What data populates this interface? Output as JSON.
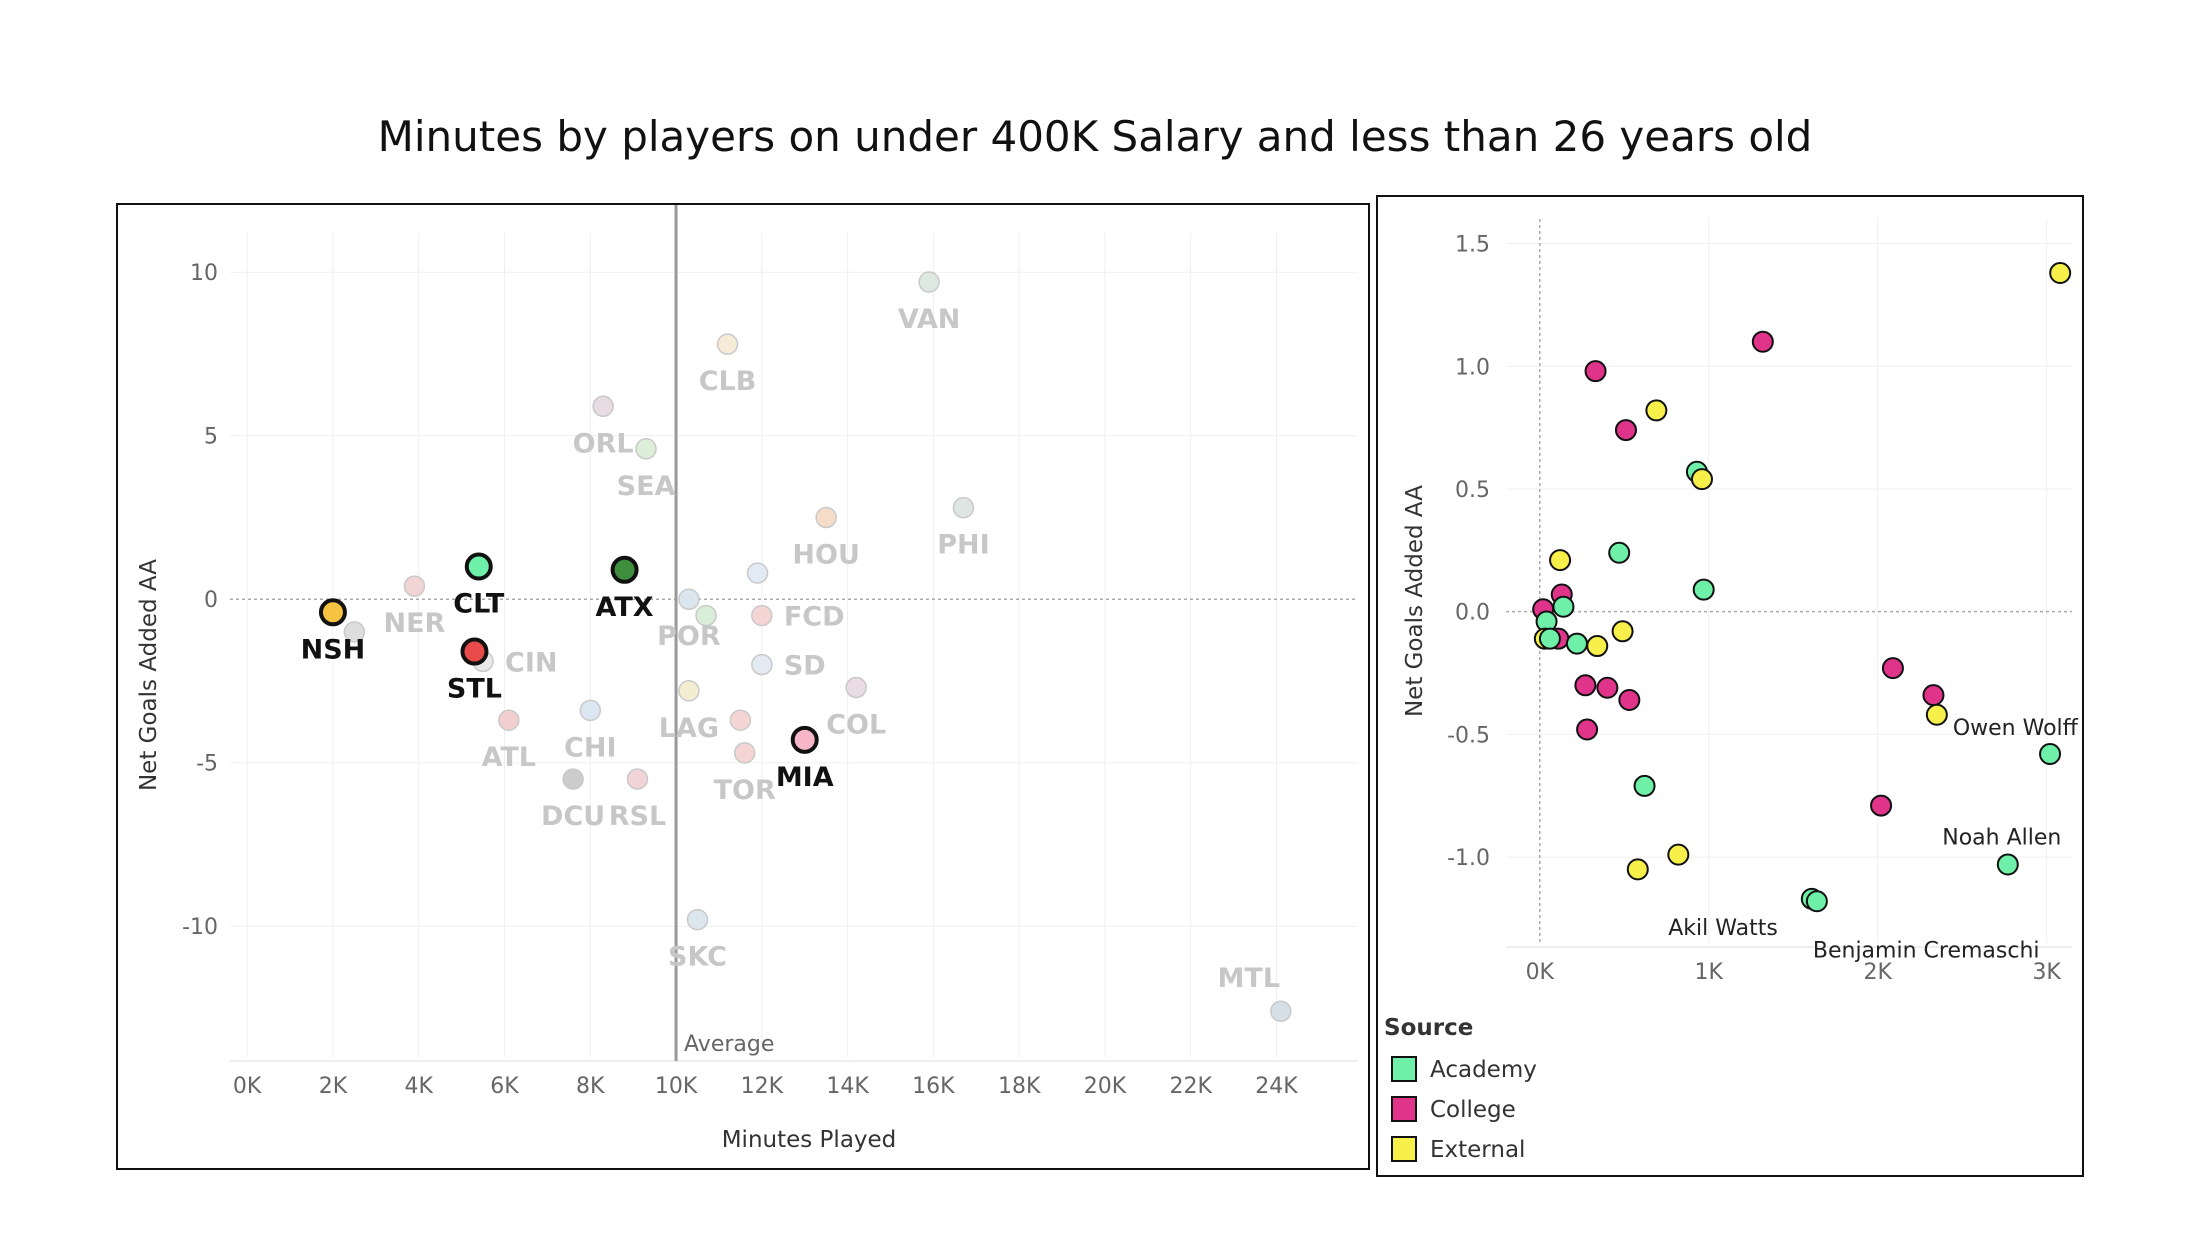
{
  "title": "Minutes by players on under 400K Salary and less than 26 years old",
  "colors": {
    "academy": "#6EF0A8",
    "college": "#E0338A",
    "external": "#F7F04A",
    "highlight_text": "#111111",
    "muted_text": "#C7C7C7",
    "average_line": "#999999"
  },
  "chart_data": [
    {
      "type": "scatter",
      "title": "",
      "xlabel": "Minutes Played",
      "ylabel": "Net Goals Added AA",
      "xlim": [
        -400,
        25900
      ],
      "ylim": [
        -14.0,
        11.2
      ],
      "xticks": [
        0,
        2000,
        4000,
        6000,
        8000,
        10000,
        12000,
        14000,
        16000,
        18000,
        20000,
        22000,
        24000
      ],
      "xtick_labels": [
        "0K",
        "2K",
        "4K",
        "6K",
        "8K",
        "10K",
        "12K",
        "14K",
        "16K",
        "18K",
        "20K",
        "22K",
        "24K"
      ],
      "yticks": [
        10,
        5,
        0,
        -5,
        -10
      ],
      "ytick_labels": [
        "10",
        "5",
        "0",
        "-5",
        "-10"
      ],
      "grid": true,
      "average_line": {
        "x": 10000,
        "label": "Average"
      },
      "points": [
        {
          "team": "NSH",
          "x": 2000,
          "y": -0.4,
          "highlight": true,
          "fill": "#F5C242",
          "label_pos": "below"
        },
        {
          "team": "CLT",
          "x": 5400,
          "y": 1.0,
          "highlight": true,
          "fill": "#6EF0A8",
          "label_pos": "below"
        },
        {
          "team": "STL",
          "x": 5300,
          "y": -1.6,
          "highlight": true,
          "fill": "#E84A4A",
          "label_pos": "below"
        },
        {
          "team": "ATX",
          "x": 8800,
          "y": 0.9,
          "highlight": true,
          "fill": "#3E8E3E",
          "label_pos": "below"
        },
        {
          "team": "MIA",
          "x": 13000,
          "y": -4.3,
          "highlight": true,
          "fill": "#F7B6C8",
          "label_pos": "below"
        },
        {
          "team": "NER",
          "x": 3900,
          "y": 0.4,
          "highlight": false,
          "fill": "#F2D4D4",
          "label_pos": "below"
        },
        {
          "team": "",
          "x": 2500,
          "y": -1.0,
          "highlight": false,
          "fill": "#DDDDDD",
          "label_pos": "none"
        },
        {
          "team": "CIN",
          "x": 5500,
          "y": -1.9,
          "highlight": false,
          "fill": "#E8E8E8",
          "label_pos": "right"
        },
        {
          "team": "ATL",
          "x": 6100,
          "y": -3.7,
          "highlight": false,
          "fill": "#F2CFCF",
          "label_pos": "below"
        },
        {
          "team": "CHI",
          "x": 8000,
          "y": -3.4,
          "highlight": false,
          "fill": "#DCE6F2",
          "label_pos": "below"
        },
        {
          "team": "DCU",
          "x": 7600,
          "y": -5.5,
          "highlight": false,
          "fill": "#CCCCCC",
          "label_pos": "below"
        },
        {
          "team": "RSL",
          "x": 9100,
          "y": -5.5,
          "highlight": false,
          "fill": "#F2D4D8",
          "label_pos": "below"
        },
        {
          "team": "ORL",
          "x": 8300,
          "y": 5.9,
          "highlight": false,
          "fill": "#E8DCE2",
          "label_pos": "below"
        },
        {
          "team": "SEA",
          "x": 9300,
          "y": 4.6,
          "highlight": false,
          "fill": "#DDEFD8",
          "label_pos": "below"
        },
        {
          "team": "CLB",
          "x": 11200,
          "y": 7.8,
          "highlight": false,
          "fill": "#F5EBD6",
          "label_pos": "below"
        },
        {
          "team": "VAN",
          "x": 15900,
          "y": 9.7,
          "highlight": false,
          "fill": "#DDE8E2",
          "label_pos": "below"
        },
        {
          "team": "HOU",
          "x": 13500,
          "y": 2.5,
          "highlight": false,
          "fill": "#F5DCC8",
          "label_pos": "below"
        },
        {
          "team": "PHI",
          "x": 16700,
          "y": 2.8,
          "highlight": false,
          "fill": "#DDE6E2",
          "label_pos": "below"
        },
        {
          "team": "",
          "x": 11900,
          "y": 0.8,
          "highlight": false,
          "fill": "#E2EAF4",
          "label_pos": "none"
        },
        {
          "team": "POR",
          "x": 10300,
          "y": 0.0,
          "highlight": false,
          "fill": "#DCE6EE",
          "label_pos": "below"
        },
        {
          "team": "",
          "x": 10700,
          "y": -0.5,
          "highlight": false,
          "fill": "#D8EED8",
          "label_pos": "none"
        },
        {
          "team": "FCD",
          "x": 12000,
          "y": -0.5,
          "highlight": false,
          "fill": "#F5D4D4",
          "label_pos": "right"
        },
        {
          "team": "SD",
          "x": 12000,
          "y": -2.0,
          "highlight": false,
          "fill": "#E4EAF2",
          "label_pos": "right"
        },
        {
          "team": "LAG",
          "x": 10300,
          "y": -2.8,
          "highlight": false,
          "fill": "#F5EDD2",
          "label_pos": "below"
        },
        {
          "team": "",
          "x": 11500,
          "y": -3.7,
          "highlight": false,
          "fill": "#F5D4D4",
          "label_pos": "none"
        },
        {
          "team": "TOR",
          "x": 11600,
          "y": -4.7,
          "highlight": false,
          "fill": "#F5D4D4",
          "label_pos": "below"
        },
        {
          "team": "COL",
          "x": 14200,
          "y": -2.7,
          "highlight": false,
          "fill": "#EADCE2",
          "label_pos": "below"
        },
        {
          "team": "SKC",
          "x": 10500,
          "y": -9.8,
          "highlight": false,
          "fill": "#DCE6EE",
          "label_pos": "below"
        },
        {
          "team": "MTL",
          "x": 24100,
          "y": -12.6,
          "highlight": false,
          "fill": "#D6DEE6",
          "label_pos": "above-left"
        }
      ]
    },
    {
      "type": "scatter",
      "title": "",
      "xlabel": "",
      "ylabel": "Net Goals Added AA",
      "xlim": [
        -200,
        3150
      ],
      "ylim": [
        -1.35,
        1.6
      ],
      "xticks": [
        0,
        1000,
        2000,
        3000
      ],
      "xtick_labels": [
        "0K",
        "1K",
        "2K",
        "3K"
      ],
      "yticks": [
        1.5,
        1.0,
        0.5,
        0.0,
        -0.5,
        -1.0
      ],
      "ytick_labels": [
        "1.5",
        "1.0",
        "0.5",
        "0.0",
        "-0.5",
        "-1.0"
      ],
      "grid": true,
      "legend": {
        "title": "Source",
        "position": "bottom-left",
        "items": [
          {
            "label": "Academy",
            "color": "#6EF0A8"
          },
          {
            "label": "College",
            "color": "#E0338A"
          },
          {
            "label": "External",
            "color": "#F7F04A"
          }
        ]
      },
      "points": [
        {
          "x": 3080,
          "y": 1.38,
          "source": "External",
          "name": ""
        },
        {
          "x": 1320,
          "y": 1.1,
          "source": "College",
          "name": ""
        },
        {
          "x": 330,
          "y": 0.98,
          "source": "College",
          "name": ""
        },
        {
          "x": 690,
          "y": 0.82,
          "source": "External",
          "name": ""
        },
        {
          "x": 510,
          "y": 0.74,
          "source": "College",
          "name": ""
        },
        {
          "x": 930,
          "y": 0.57,
          "source": "Academy",
          "name": ""
        },
        {
          "x": 960,
          "y": 0.54,
          "source": "External",
          "name": ""
        },
        {
          "x": 470,
          "y": 0.24,
          "source": "Academy",
          "name": ""
        },
        {
          "x": 120,
          "y": 0.21,
          "source": "External",
          "name": ""
        },
        {
          "x": 970,
          "y": 0.09,
          "source": "Academy",
          "name": ""
        },
        {
          "x": 130,
          "y": 0.07,
          "source": "College",
          "name": ""
        },
        {
          "x": 140,
          "y": 0.02,
          "source": "Academy",
          "name": ""
        },
        {
          "x": 20,
          "y": 0.01,
          "source": "College",
          "name": ""
        },
        {
          "x": 40,
          "y": -0.04,
          "source": "Academy",
          "name": ""
        },
        {
          "x": 490,
          "y": -0.08,
          "source": "External",
          "name": ""
        },
        {
          "x": 110,
          "y": -0.11,
          "source": "College",
          "name": ""
        },
        {
          "x": 30,
          "y": -0.11,
          "source": "External",
          "name": ""
        },
        {
          "x": 60,
          "y": -0.11,
          "source": "Academy",
          "name": ""
        },
        {
          "x": 220,
          "y": -0.13,
          "source": "Academy",
          "name": ""
        },
        {
          "x": 340,
          "y": -0.14,
          "source": "External",
          "name": ""
        },
        {
          "x": 2090,
          "y": -0.23,
          "source": "College",
          "name": ""
        },
        {
          "x": 270,
          "y": -0.3,
          "source": "College",
          "name": ""
        },
        {
          "x": 400,
          "y": -0.31,
          "source": "College",
          "name": ""
        },
        {
          "x": 2330,
          "y": -0.34,
          "source": "College",
          "name": ""
        },
        {
          "x": 530,
          "y": -0.36,
          "source": "College",
          "name": ""
        },
        {
          "x": 2350,
          "y": -0.42,
          "source": "External",
          "name": "Owen Wolff"
        },
        {
          "x": 280,
          "y": -0.48,
          "source": "College",
          "name": ""
        },
        {
          "x": 3020,
          "y": -0.58,
          "source": "Academy",
          "name": ""
        },
        {
          "x": 620,
          "y": -0.71,
          "source": "Academy",
          "name": ""
        },
        {
          "x": 2020,
          "y": -0.79,
          "source": "College",
          "name": ""
        },
        {
          "x": 820,
          "y": -0.99,
          "source": "External",
          "name": ""
        },
        {
          "x": 2770,
          "y": -1.03,
          "source": "Academy",
          "name": "Noah Allen"
        },
        {
          "x": 580,
          "y": -1.05,
          "source": "External",
          "name": ""
        },
        {
          "x": 1610,
          "y": -1.17,
          "source": "Academy",
          "name": "Akil Watts"
        },
        {
          "x": 1640,
          "y": -1.18,
          "source": "Academy",
          "name": "Benjamin Cremaschi"
        }
      ]
    }
  ]
}
